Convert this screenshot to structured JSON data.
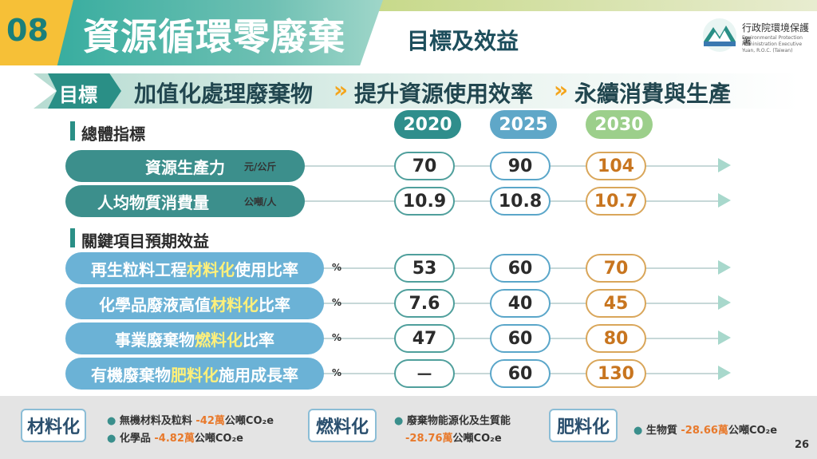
{
  "header": {
    "number": "08",
    "title": "資源循環零廢棄",
    "subtitle": "目標及效益",
    "org_name": "行政院環境保護署",
    "org_en": "Environmental Protection Administration Executive Yuan, R.O.C. (Taiwan)"
  },
  "goal": {
    "tag": "目標",
    "items": [
      "加值化處理廢棄物",
      "提升資源使用效率",
      "永續消費與生產"
    ],
    "separator": "»"
  },
  "years": [
    "2020",
    "2025",
    "2030"
  ],
  "sections": {
    "overall": {
      "title": "總體指標",
      "rows": [
        {
          "label": "資源生產力",
          "unit": "元/公斤",
          "values": [
            "70",
            "90",
            "104"
          ]
        },
        {
          "label": "人均物質消費量",
          "unit": "公噸/人",
          "values": [
            "10.9",
            "10.8",
            "10.7"
          ]
        }
      ]
    },
    "key": {
      "title": "關鍵項目預期效益",
      "rows": [
        {
          "pre": "再生粒料工程",
          "hl": "材料化",
          "post": "使用比率",
          "unit": "%",
          "values": [
            "53",
            "60",
            "70"
          ]
        },
        {
          "pre": "化學品廢液高值",
          "hl": "材料化",
          "post": "比率",
          "unit": "%",
          "values": [
            "7.6",
            "40",
            "45"
          ]
        },
        {
          "pre": "事業廢棄物",
          "hl": "燃料化",
          "post": "比率",
          "unit": "%",
          "values": [
            "47",
            "60",
            "80"
          ]
        },
        {
          "pre": "有機廢棄物",
          "hl": "肥料化",
          "post": "施用成長率",
          "unit": "%",
          "values": [
            "－",
            "60",
            "130"
          ]
        }
      ]
    }
  },
  "bottom": {
    "materials": {
      "tag": "材料化",
      "line1_pre": "無機材料及粒料 ",
      "line1_num": "-42萬",
      "line1_post": "公噸CO₂e",
      "line2_pre": "化學品 ",
      "line2_num": "-4.82萬",
      "line2_post": "公噸CO₂e"
    },
    "fuel": {
      "tag": "燃料化",
      "line1_pre": "廢棄物能源化及生質能",
      "line2_num": "-28.76萬",
      "line2_post": "公噸CO₂e"
    },
    "fertilizer": {
      "tag": "肥料化",
      "line1_pre": "生物質 ",
      "line1_num": "-28.66萬",
      "line1_post": "公噸CO₂e"
    }
  },
  "page_number": "26",
  "colors": {
    "teal": "#3c8f8c",
    "blue": "#6bb2d6",
    "orange": "#d9a65a",
    "yellow": "#f6c037"
  }
}
